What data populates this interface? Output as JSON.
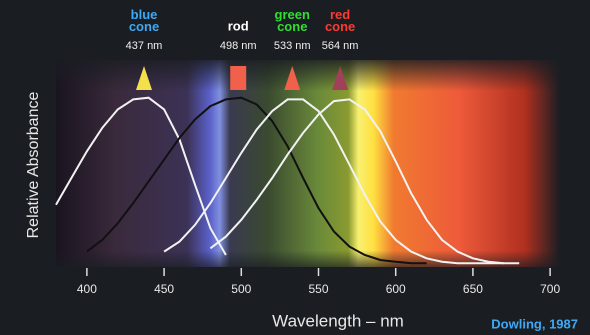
{
  "chart_data": {
    "type": "line",
    "x_label": "Wavelength – nm",
    "y_label": "Relative Absorbance",
    "credit": "Dowling, 1987",
    "xlim": [
      380,
      720
    ],
    "ylim": [
      0,
      1.1
    ],
    "xticks": [
      400,
      450,
      500,
      550,
      600,
      650,
      700
    ],
    "x": [
      380,
      390,
      400,
      410,
      420,
      430,
      440,
      450,
      460,
      470,
      480,
      490,
      500,
      510,
      520,
      530,
      540,
      550,
      560,
      570,
      580,
      590,
      600,
      610,
      620,
      630,
      640,
      650,
      660,
      670,
      680
    ],
    "series": [
      {
        "name": "blue cone",
        "color": "#f2f2f2",
        "label_color": "#3fa9f5",
        "marker": "triangle",
        "marker_color": "#f3e04a",
        "peak": {
          "value": 437,
          "label": "437 nm"
        },
        "values": [
          0.36,
          0.52,
          0.68,
          0.82,
          0.93,
          0.99,
          1.0,
          0.93,
          0.75,
          0.48,
          0.22,
          0.06,
          null,
          null,
          null,
          null,
          null,
          null,
          null,
          null,
          null,
          null,
          null,
          null,
          null,
          null,
          null,
          null,
          null,
          null,
          null
        ]
      },
      {
        "name": "rod",
        "color": "#111111",
        "label_color": "#ffffff",
        "marker": "square",
        "marker_color": "#f0604a",
        "peak": {
          "value": 498,
          "label": "498 nm"
        },
        "values": [
          null,
          null,
          0.08,
          0.15,
          0.25,
          0.37,
          0.5,
          0.63,
          0.76,
          0.87,
          0.95,
          0.99,
          1.0,
          0.96,
          0.86,
          0.71,
          0.52,
          0.34,
          0.2,
          0.11,
          0.06,
          0.03,
          0.02,
          0.01,
          0.01,
          null,
          null,
          null,
          null,
          null,
          null
        ]
      },
      {
        "name": "green cone",
        "color": "#f2f2f2",
        "label_color": "#33dd33",
        "marker": "triangle",
        "marker_color": "#f0604a",
        "peak": {
          "value": 533,
          "label": "533 nm"
        },
        "values": [
          null,
          null,
          null,
          null,
          null,
          null,
          null,
          0.08,
          0.14,
          0.24,
          0.37,
          0.52,
          0.67,
          0.81,
          0.92,
          0.99,
          0.99,
          0.92,
          0.78,
          0.6,
          0.42,
          0.26,
          0.15,
          0.08,
          0.04,
          0.02,
          0.01,
          0.01,
          0.01,
          0.01,
          null
        ]
      },
      {
        "name": "red cone",
        "color": "#f2f2f2",
        "label_color": "#ff3a30",
        "marker": "triangle",
        "marker_color": "#a0405a",
        "peak": {
          "value": 564,
          "label": "564 nm"
        },
        "values": [
          null,
          null,
          null,
          null,
          null,
          null,
          null,
          null,
          null,
          null,
          0.1,
          0.17,
          0.27,
          0.39,
          0.52,
          0.66,
          0.79,
          0.9,
          0.98,
          0.99,
          0.93,
          0.8,
          0.62,
          0.43,
          0.27,
          0.15,
          0.08,
          0.04,
          0.02,
          0.01,
          0.01
        ]
      }
    ]
  }
}
